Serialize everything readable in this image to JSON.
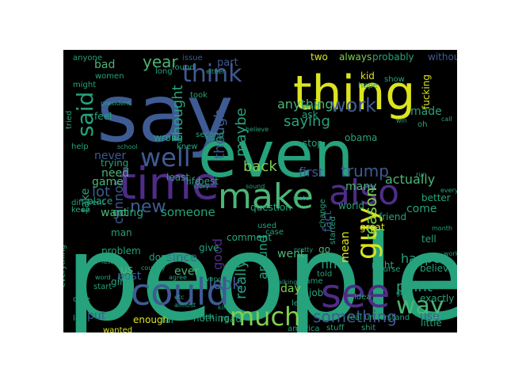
{
  "words": [
    {
      "text": "people",
      "color": "#26a27c"
    },
    {
      "text": "say",
      "color": "#3e5b94"
    },
    {
      "text": "even",
      "color": "#26a27c"
    },
    {
      "text": "thing",
      "color": "#dbe41f"
    },
    {
      "text": "time",
      "color": "#4f2c88"
    },
    {
      "text": "make",
      "color": "#4bb676"
    },
    {
      "text": "also",
      "color": "#4f2c88"
    },
    {
      "text": "could",
      "color": "#3e5b94"
    },
    {
      "text": "see",
      "color": "#4f2c88"
    },
    {
      "text": "well",
      "color": "#3e5b94"
    },
    {
      "text": "much",
      "color": "#7fd04f"
    },
    {
      "text": "guy",
      "color": "#dbe41f"
    },
    {
      "text": "said",
      "color": "#26a27c"
    },
    {
      "text": "think",
      "color": "#3e5b94"
    },
    {
      "text": "way",
      "color": "#4bb676"
    },
    {
      "text": "work",
      "color": "#3e5b94"
    },
    {
      "text": "trump",
      "color": "#3e5b94"
    },
    {
      "text": "something",
      "color": "#3e5b94"
    },
    {
      "text": "new",
      "color": "#3e5b94"
    },
    {
      "text": "really",
      "color": "#26a27c"
    },
    {
      "text": "year",
      "color": "#4bb676"
    },
    {
      "text": "saying",
      "color": "#26a27c"
    },
    {
      "text": "actually",
      "color": "#4bb676"
    },
    {
      "text": "maybe",
      "color": "#26a27c"
    },
    {
      "text": "back",
      "color": "#7fd04f"
    },
    {
      "text": "thought",
      "color": "#26a27c"
    },
    {
      "text": "though",
      "color": "#3e5b94"
    },
    {
      "text": "point",
      "color": "#26a27c"
    },
    {
      "text": "look",
      "color": "#3e5b94"
    },
    {
      "text": "lot",
      "color": "#3e5b94"
    },
    {
      "text": "first",
      "color": "#3e5b94"
    },
    {
      "text": "reason",
      "color": "#7fd04f"
    },
    {
      "text": "happen",
      "color": "#26a27c"
    },
    {
      "text": "anything",
      "color": "#4bb676"
    },
    {
      "text": "someone",
      "color": "#26a27c"
    },
    {
      "text": "going",
      "color": "#26a27c"
    },
    {
      "text": "cannot",
      "color": "#3e5b94"
    },
    {
      "text": "since",
      "color": "#3e5b94"
    },
    {
      "text": "around",
      "color": "#26a27c"
    },
    {
      "text": "find",
      "color": "#26a27c"
    },
    {
      "text": "want",
      "color": "#4bb676"
    },
    {
      "text": "take",
      "color": "#26a27c"
    },
    {
      "text": "never",
      "color": "#3e5b94"
    },
    {
      "text": "need",
      "color": "#4bb676"
    },
    {
      "text": "bad",
      "color": "#4bb676"
    },
    {
      "text": "game",
      "color": "#4bb676"
    },
    {
      "text": "made",
      "color": "#26a27c"
    },
    {
      "text": "ever",
      "color": "#4bb676"
    },
    {
      "text": "went",
      "color": "#4bb676"
    },
    {
      "text": "many",
      "color": "#4bb676"
    },
    {
      "text": "mean",
      "color": "#dbe41f"
    },
    {
      "text": "fact",
      "color": "#3e5b94"
    },
    {
      "text": "use",
      "color": "#3e5b94"
    },
    {
      "text": "day",
      "color": "#7fd04f"
    },
    {
      "text": "post",
      "color": "#3e5b94"
    },
    {
      "text": "put",
      "color": "#3e5b94"
    },
    {
      "text": "us",
      "color": "#4bb676"
    },
    {
      "text": "go",
      "color": "#4bb676"
    },
    {
      "text": "good",
      "color": "#4f2c88"
    },
    {
      "text": "come",
      "color": "#26a27c"
    },
    {
      "text": "part",
      "color": "#3e5b94"
    },
    {
      "text": "fucking",
      "color": "#dbe41f"
    },
    {
      "text": "always",
      "color": "#7fd04f"
    },
    {
      "text": "two",
      "color": "#dbe41f"
    },
    {
      "text": "probably",
      "color": "#26a27c"
    },
    {
      "text": "without",
      "color": "#3e5b94"
    },
    {
      "text": "issue",
      "color": "#3e5b94"
    },
    {
      "text": "anyone",
      "color": "#26a27c"
    },
    {
      "text": "kid",
      "color": "#dbe41f"
    },
    {
      "text": "end",
      "color": "#26a27c"
    },
    {
      "text": "ask",
      "color": "#26a27c"
    },
    {
      "text": "feel",
      "color": "#26a27c"
    },
    {
      "text": "right",
      "color": "#26a27c"
    },
    {
      "text": "great",
      "color": "#dbe41f"
    },
    {
      "text": "friend",
      "color": "#26a27c"
    },
    {
      "text": "better",
      "color": "#26a27c"
    },
    {
      "text": "stop",
      "color": "#26a27c"
    },
    {
      "text": "tell",
      "color": "#26a27c"
    },
    {
      "text": "wrong",
      "color": "#26a27c"
    },
    {
      "text": "least",
      "color": "#26a27c"
    },
    {
      "text": "life",
      "color": "#26a27c"
    },
    {
      "text": "best",
      "color": "#26a27c"
    },
    {
      "text": "trying",
      "color": "#26a27c"
    },
    {
      "text": "question",
      "color": "#26a27c"
    },
    {
      "text": "comment",
      "color": "#26a27c"
    },
    {
      "text": "give",
      "color": "#26a27c"
    },
    {
      "text": "nothing",
      "color": "#26a27c"
    },
    {
      "text": "read",
      "color": "#26a27c"
    },
    {
      "text": "job",
      "color": "#26a27c"
    },
    {
      "text": "exactly",
      "color": "#26a27c"
    },
    {
      "text": "little",
      "color": "#26a27c"
    },
    {
      "text": "problem",
      "color": "#26a27c"
    },
    {
      "text": "enough",
      "color": "#dbe41f"
    },
    {
      "text": "far",
      "color": "#26a27c"
    },
    {
      "text": "let",
      "color": "#26a27c"
    },
    {
      "text": "girl",
      "color": "#26a27c"
    },
    {
      "text": "done",
      "color": "#26a27c"
    },
    {
      "text": "told",
      "color": "#26a27c"
    },
    {
      "text": "believe",
      "color": "#26a27c"
    },
    {
      "text": "obama",
      "color": "#26a27c"
    },
    {
      "text": "world",
      "color": "#26a27c"
    },
    {
      "text": "started",
      "color": "#26a27c"
    },
    {
      "text": "change",
      "color": "#26a27c"
    },
    {
      "text": "place",
      "color": "#26a27c"
    },
    {
      "text": "man",
      "color": "#26a27c"
    },
    {
      "text": "case",
      "color": "#26a27c"
    },
    {
      "text": "used",
      "color": "#26a27c"
    },
    {
      "text": "left",
      "color": "#26a27c"
    },
    {
      "text": "found",
      "color": "#26a27c"
    },
    {
      "text": "took",
      "color": "#26a27c"
    },
    {
      "text": "women",
      "color": "#26a27c"
    },
    {
      "text": "long",
      "color": "#26a27c"
    },
    {
      "text": "might",
      "color": "#26a27c"
    },
    {
      "text": "play",
      "color": "#26a27c"
    },
    {
      "text": "real",
      "color": "#26a27c"
    },
    {
      "text": "understand",
      "color": "#26a27c"
    },
    {
      "text": "shit",
      "color": "#26a27c"
    },
    {
      "text": "stuff",
      "color": "#26a27c"
    },
    {
      "text": "america",
      "color": "#26a27c"
    },
    {
      "text": "wanted",
      "color": "#dbe41f"
    },
    {
      "text": "everything",
      "color": "#26a27c"
    },
    {
      "text": "care",
      "color": "#26a27c"
    },
    {
      "text": "start",
      "color": "#26a27c"
    },
    {
      "text": "person",
      "color": "#26a27c"
    },
    {
      "text": "oh",
      "color": "#26a27c"
    },
    {
      "text": "show",
      "color": "#26a27c"
    },
    {
      "text": "hope",
      "color": "#26a27c"
    },
    {
      "text": "course",
      "color": "#26a27c"
    },
    {
      "text": "came",
      "color": "#26a27c"
    },
    {
      "text": "idea",
      "color": "#26a27c"
    },
    {
      "text": "tried",
      "color": "#26a27c"
    },
    {
      "text": "different",
      "color": "#26a27c"
    },
    {
      "text": "keep",
      "color": "#26a27c"
    },
    {
      "text": "help",
      "color": "#26a27c"
    },
    {
      "text": "school",
      "color": "#26a27c"
    },
    {
      "text": "second",
      "color": "#26a27c"
    },
    {
      "text": "knew",
      "color": "#26a27c"
    },
    {
      "text": "sound",
      "color": "#26a27c"
    },
    {
      "text": "state",
      "color": "#26a27c"
    },
    {
      "text": "talking",
      "color": "#26a27c"
    },
    {
      "text": "pretty",
      "color": "#26a27c"
    },
    {
      "text": "hard",
      "color": "#26a27c"
    },
    {
      "text": "word",
      "color": "#26a27c"
    },
    {
      "text": "etc",
      "color": "#26a27c"
    },
    {
      "text": "kind",
      "color": "#26a27c"
    },
    {
      "text": "every",
      "color": "#26a27c"
    },
    {
      "text": "agree",
      "color": "#26a27c"
    },
    {
      "text": "country",
      "color": "#26a27c"
    },
    {
      "text": "last",
      "color": "#26a27c"
    },
    {
      "text": "story",
      "color": "#26a27c"
    },
    {
      "text": "black",
      "color": "#26a27c"
    },
    {
      "text": "believe",
      "color": "#26a27c"
    },
    {
      "text": "win",
      "color": "#26a27c"
    },
    {
      "text": "got",
      "color": "#26a27c"
    },
    {
      "text": "month",
      "color": "#26a27c"
    },
    {
      "text": "everyone",
      "color": "#26a27c"
    },
    {
      "text": "worked",
      "color": "#26a27c"
    },
    {
      "text": "run",
      "color": "#26a27c"
    },
    {
      "text": "call",
      "color": "#26a27c"
    },
    {
      "text": "either",
      "color": "#26a27c"
    },
    {
      "text": "president",
      "color": "#26a27c"
    },
    {
      "text": "almost",
      "color": "#26a27c"
    },
    {
      "text": "edit",
      "color": "#26a27c"
    },
    {
      "text": "matter",
      "color": "#26a27c"
    },
    {
      "text": "may",
      "color": "#26a27c"
    }
  ]
}
